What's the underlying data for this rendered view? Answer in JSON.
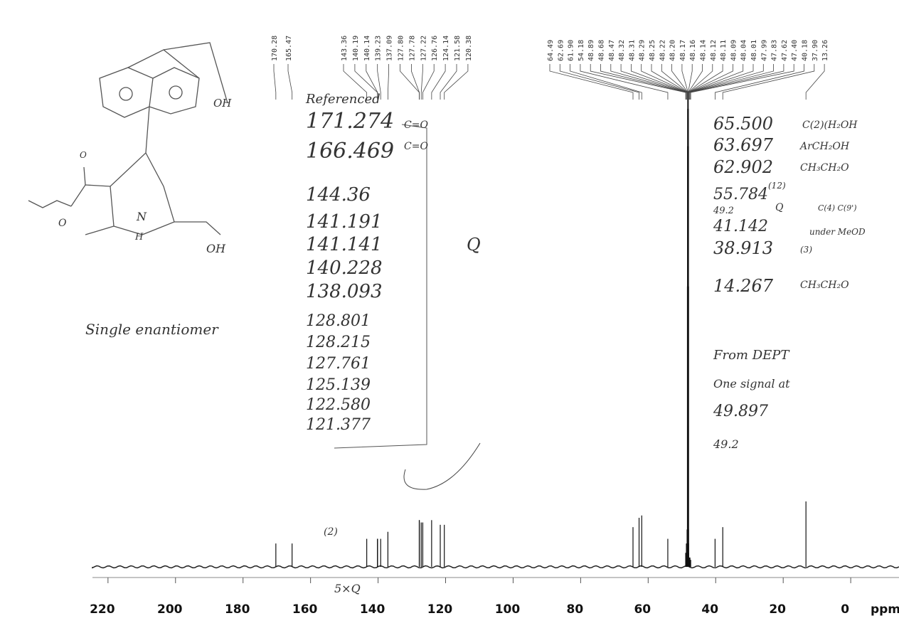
{
  "chart_data": {
    "type": "nmr",
    "x": [
      170.28,
      165.47,
      143.36,
      140.19,
      140.14,
      139.23,
      137.09,
      127.8,
      127.78,
      127.22,
      126.76,
      124.14,
      121.58,
      120.38,
      64.49,
      62.69,
      61.9,
      54.18,
      48.89,
      48.68,
      48.47,
      48.32,
      48.31,
      48.29,
      48.25,
      48.22,
      48.2,
      48.17,
      48.16,
      48.14,
      48.12,
      48.11,
      48.09,
      48.04,
      48.01,
      47.99,
      47.83,
      47.62,
      47.4,
      40.18,
      37.9,
      13.26
    ],
    "value_labels": [
      "170.28",
      "165.47",
      "143.36",
      "140.19",
      "140.14",
      "139.23",
      "137.09",
      "127.80",
      "127.78",
      "127.22",
      "126.76",
      "124.14",
      "121.58",
      "120.38",
      "64.49",
      "62.69",
      "61.90",
      "54.18",
      "48.89",
      "48.68",
      "48.47",
      "48.32",
      "48.31",
      "48.29",
      "48.25",
      "48.22",
      "48.20",
      "48.17",
      "48.16",
      "48.14",
      "48.12",
      "48.11",
      "48.09",
      "48.04",
      "48.01",
      "47.99",
      "47.83",
      "47.62",
      "47.40",
      "40.18",
      "37.90",
      "13.26"
    ],
    "values": [
      5,
      5,
      6,
      6,
      6,
      6,
      7.5,
      10,
      10,
      9.5,
      9.5,
      10,
      9,
      9,
      8.5,
      10.5,
      11,
      6,
      3,
      5,
      8,
      15,
      30,
      60,
      90,
      98,
      100,
      98,
      96,
      90,
      60,
      30,
      15,
      8,
      5,
      3,
      2,
      2,
      1.5,
      6,
      8.5,
      14
    ],
    "color": "#111",
    "xlim": [
      224.6,
      -14.3
    ],
    "xticks": [
      220,
      200,
      180,
      160,
      140,
      120,
      100,
      80,
      60,
      40,
      20,
      0
    ],
    "x_label": "ppm",
    "ylim": [
      0,
      100
    ]
  },
  "annotations": [
    "Referenced",
    "171.274",
    "C=O",
    "166.469",
    "C=O",
    "144.36",
    "141.191",
    "141.141",
    "140.228",
    "138.093",
    "Q",
    "128.801",
    "128.215",
    "127.761",
    "125.139",
    "122.580",
    "121.377",
    "Single enantiomer",
    "65.500",
    "C(2)(H₂OH",
    "63.697",
    "ArCH₂OH",
    "62.902",
    "CH₃CH₂O",
    "55.784",
    "(12)",
    "49.2",
    "41.142",
    "Q",
    "C(4) C(9')",
    "under MeOD",
    "38.913",
    "(3)",
    "14.267",
    "CH₃CH₂O",
    "From DEPT",
    "One signal at",
    "49.897",
    "49.2",
    "(2)",
    "5×Q"
  ],
  "structure_labels": [
    "OH",
    "O",
    "O",
    "N",
    "H",
    "OH"
  ]
}
